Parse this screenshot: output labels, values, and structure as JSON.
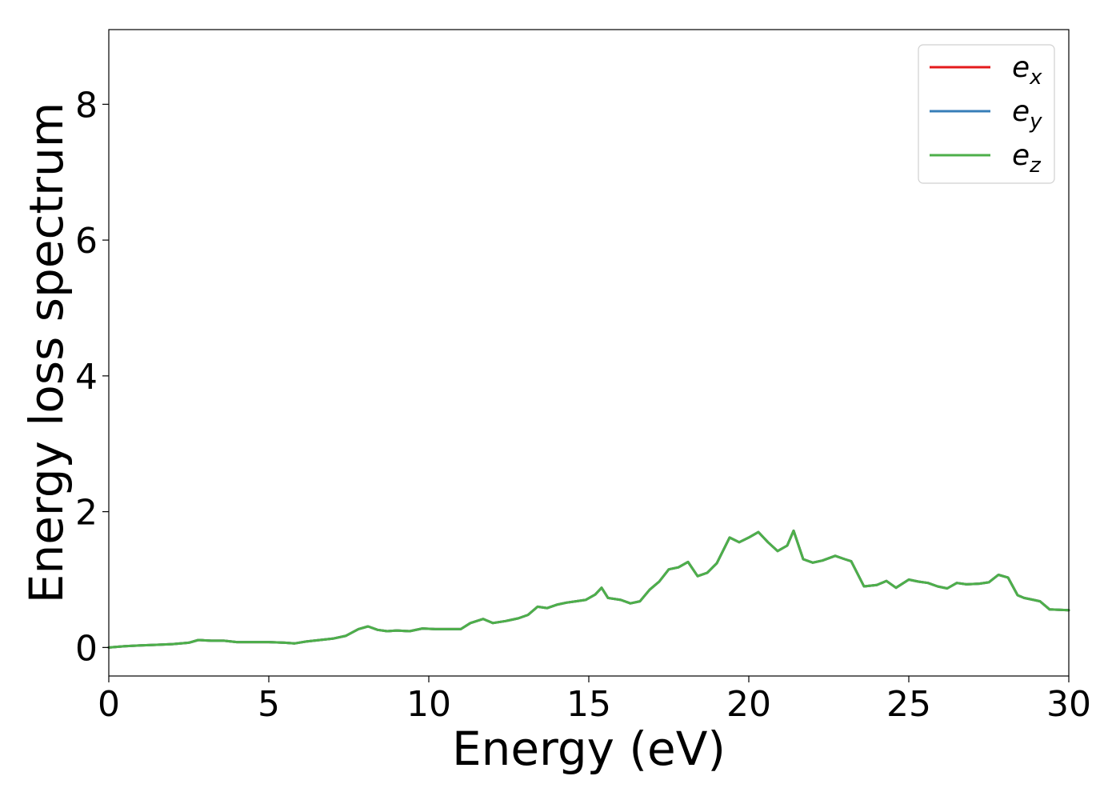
{
  "chart_data": {
    "type": "line",
    "xlabel": "Energy (eV)",
    "ylabel": "Energy loss spectrum",
    "xlim": [
      0,
      30
    ],
    "ylim": [
      -0.42,
      9.1
    ],
    "xticks": [
      "0",
      "5",
      "10",
      "15",
      "20",
      "25",
      "30"
    ],
    "yticks": [
      "0",
      "2",
      "4",
      "6",
      "8"
    ],
    "grid": false,
    "legend_position": "top-right",
    "series": [
      {
        "name": "e_x",
        "label_base": "e",
        "label_sub": "x",
        "color": "#e41a1c",
        "x": [
          0,
          0.5,
          1,
          1.5,
          2,
          2.5,
          2.8,
          3.2,
          3.6,
          4,
          4.5,
          5,
          5.5,
          5.8,
          6.2,
          6.6,
          7,
          7.4,
          7.8,
          8.1,
          8.4,
          8.7,
          9,
          9.4,
          9.8,
          10.2,
          10.6,
          11,
          11.3,
          11.7,
          12,
          12.4,
          12.8,
          13.1,
          13.4,
          13.7,
          14,
          14.3,
          14.6,
          14.9,
          15.2,
          15.4,
          15.6,
          16,
          16.3,
          16.6,
          16.9,
          17.2,
          17.5,
          17.8,
          18.1,
          18.4,
          18.7,
          19,
          19.4,
          19.7,
          20,
          20.3,
          20.6,
          20.9,
          21.2,
          21.4,
          21.7,
          22,
          22.3,
          22.7,
          23,
          23.2,
          23.6,
          24,
          24.3,
          24.6,
          25,
          25.3,
          25.6,
          25.9,
          26.2,
          26.5,
          26.8,
          27.2,
          27.5,
          27.8,
          28.1,
          28.4,
          28.6,
          28.9,
          29.1,
          29.4,
          30
        ],
        "y": [
          0,
          0.02,
          0.03,
          0.04,
          0.05,
          0.07,
          0.11,
          0.1,
          0.1,
          0.08,
          0.08,
          0.08,
          0.07,
          0.06,
          0.09,
          0.11,
          0.13,
          0.17,
          0.27,
          0.31,
          0.26,
          0.24,
          0.25,
          0.24,
          0.28,
          0.27,
          0.27,
          0.27,
          0.36,
          0.42,
          0.36,
          0.39,
          0.43,
          0.48,
          0.6,
          0.58,
          0.63,
          0.66,
          0.68,
          0.7,
          0.78,
          0.88,
          0.73,
          0.7,
          0.65,
          0.68,
          0.85,
          0.97,
          1.15,
          1.18,
          1.26,
          1.05,
          1.1,
          1.24,
          1.62,
          1.55,
          1.62,
          1.7,
          1.55,
          1.42,
          1.5,
          1.72,
          1.3,
          1.25,
          1.28,
          1.35,
          1.3,
          1.27,
          0.9,
          0.92,
          0.98,
          0.88,
          1.0,
          0.97,
          0.95,
          0.9,
          0.87,
          0.95,
          0.93,
          0.94,
          0.96,
          1.07,
          1.03,
          0.77,
          0.73,
          0.7,
          0.68,
          0.56,
          0.55
        ]
      },
      {
        "name": "e_y",
        "label_base": "e",
        "label_sub": "y",
        "color": "#377eb8",
        "x": [
          0,
          0.5,
          1,
          1.5,
          2,
          2.5,
          2.8,
          3.2,
          3.6,
          4,
          4.5,
          5,
          5.5,
          5.8,
          6.2,
          6.6,
          7,
          7.4,
          7.8,
          8.1,
          8.4,
          8.7,
          9,
          9.4,
          9.8,
          10.2,
          10.6,
          11,
          11.3,
          11.7,
          12,
          12.4,
          12.8,
          13.1,
          13.4,
          13.7,
          14,
          14.3,
          14.6,
          14.9,
          15.2,
          15.4,
          15.6,
          16,
          16.3,
          16.6,
          16.9,
          17.2,
          17.5,
          17.8,
          18.1,
          18.4,
          18.7,
          19,
          19.4,
          19.7,
          20,
          20.3,
          20.6,
          20.9,
          21.2,
          21.4,
          21.7,
          22,
          22.3,
          22.7,
          23,
          23.2,
          23.6,
          24,
          24.3,
          24.6,
          25,
          25.3,
          25.6,
          25.9,
          26.2,
          26.5,
          26.8,
          27.2,
          27.5,
          27.8,
          28.1,
          28.4,
          28.6,
          28.9,
          29.1,
          29.4,
          30
        ],
        "y": [
          0,
          0.02,
          0.03,
          0.04,
          0.05,
          0.07,
          0.11,
          0.1,
          0.1,
          0.08,
          0.08,
          0.08,
          0.07,
          0.06,
          0.09,
          0.11,
          0.13,
          0.17,
          0.27,
          0.31,
          0.26,
          0.24,
          0.25,
          0.24,
          0.28,
          0.27,
          0.27,
          0.27,
          0.36,
          0.42,
          0.36,
          0.39,
          0.43,
          0.48,
          0.6,
          0.58,
          0.63,
          0.66,
          0.68,
          0.7,
          0.78,
          0.88,
          0.73,
          0.7,
          0.65,
          0.68,
          0.85,
          0.97,
          1.15,
          1.18,
          1.26,
          1.05,
          1.1,
          1.24,
          1.62,
          1.55,
          1.62,
          1.7,
          1.55,
          1.42,
          1.5,
          1.72,
          1.3,
          1.25,
          1.28,
          1.35,
          1.3,
          1.27,
          0.9,
          0.92,
          0.98,
          0.88,
          1.0,
          0.97,
          0.95,
          0.9,
          0.87,
          0.95,
          0.93,
          0.94,
          0.96,
          1.07,
          1.03,
          0.77,
          0.73,
          0.7,
          0.68,
          0.56,
          0.55
        ]
      },
      {
        "name": "e_z",
        "label_base": "e",
        "label_sub": "z",
        "color": "#4daf4a",
        "x": [
          0,
          0.5,
          1,
          1.5,
          2,
          2.5,
          2.8,
          3.2,
          3.6,
          4,
          4.5,
          5,
          5.5,
          5.8,
          6.2,
          6.6,
          7,
          7.4,
          7.8,
          8.1,
          8.4,
          8.7,
          9,
          9.4,
          9.8,
          10.2,
          10.6,
          11,
          11.3,
          11.7,
          12,
          12.4,
          12.8,
          13.1,
          13.4,
          13.7,
          14,
          14.3,
          14.6,
          14.9,
          15.2,
          15.4,
          15.6,
          16,
          16.3,
          16.6,
          16.9,
          17.2,
          17.5,
          17.8,
          18.1,
          18.4,
          18.7,
          19,
          19.4,
          19.7,
          20,
          20.3,
          20.6,
          20.9,
          21.2,
          21.4,
          21.7,
          22,
          22.3,
          22.7,
          23,
          23.2,
          23.6,
          24,
          24.3,
          24.6,
          25,
          25.3,
          25.6,
          25.9,
          26.2,
          26.5,
          26.8,
          27.2,
          27.5,
          27.8,
          28.1,
          28.4,
          28.6,
          28.9,
          29.1,
          29.4,
          30
        ],
        "y": [
          0,
          0.02,
          0.03,
          0.04,
          0.05,
          0.07,
          0.11,
          0.1,
          0.1,
          0.08,
          0.08,
          0.08,
          0.07,
          0.06,
          0.09,
          0.11,
          0.13,
          0.17,
          0.27,
          0.31,
          0.26,
          0.24,
          0.25,
          0.24,
          0.28,
          0.27,
          0.27,
          0.27,
          0.36,
          0.42,
          0.36,
          0.39,
          0.43,
          0.48,
          0.6,
          0.58,
          0.63,
          0.66,
          0.68,
          0.7,
          0.78,
          0.88,
          0.73,
          0.7,
          0.65,
          0.68,
          0.85,
          0.97,
          1.15,
          1.18,
          1.26,
          1.05,
          1.1,
          1.24,
          1.62,
          1.55,
          1.62,
          1.7,
          1.55,
          1.42,
          1.5,
          1.72,
          1.3,
          1.25,
          1.28,
          1.35,
          1.3,
          1.27,
          0.9,
          0.92,
          0.98,
          0.88,
          1.0,
          0.97,
          0.95,
          0.9,
          0.87,
          0.95,
          0.93,
          0.94,
          0.96,
          1.07,
          1.03,
          0.77,
          0.73,
          0.7,
          0.68,
          0.56,
          0.55
        ]
      }
    ]
  }
}
